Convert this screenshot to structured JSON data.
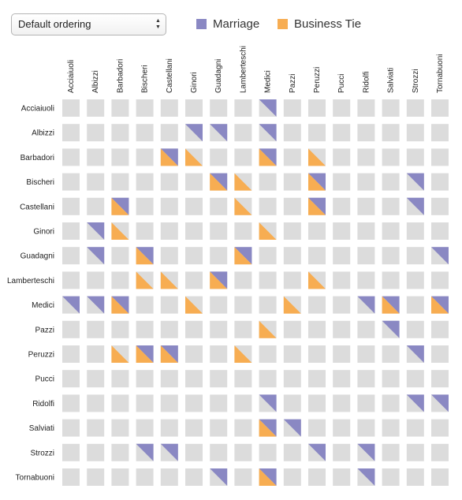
{
  "controls": {
    "ordering_select": {
      "value": "Default ordering"
    }
  },
  "legend": [
    {
      "name": "Marriage",
      "color": "#8a88c3"
    },
    {
      "name": "Business Tie",
      "color": "#f7ad52"
    }
  ],
  "colors": {
    "empty_cell": "#dcdcdc",
    "marriage": "#8a88c3",
    "business": "#f7ad52"
  },
  "chart_data": {
    "type": "heatmap",
    "title": "",
    "nodes": [
      "Acciaiuoli",
      "Albizzi",
      "Barbadori",
      "Bischeri",
      "Castellani",
      "Ginori",
      "Guadagni",
      "Lamberteschi",
      "Medici",
      "Pazzi",
      "Peruzzi",
      "Pucci",
      "Ridolfi",
      "Salviati",
      "Strozzi",
      "Tornabuoni"
    ],
    "relations": [
      "Marriage",
      "Business Tie"
    ],
    "cells": [
      {
        "row": "Acciaiuoli",
        "col": "Medici",
        "marriage": true,
        "business": false
      },
      {
        "row": "Albizzi",
        "col": "Ginori",
        "marriage": true,
        "business": false
      },
      {
        "row": "Albizzi",
        "col": "Guadagni",
        "marriage": true,
        "business": false
      },
      {
        "row": "Albizzi",
        "col": "Medici",
        "marriage": true,
        "business": false
      },
      {
        "row": "Barbadori",
        "col": "Castellani",
        "marriage": true,
        "business": true
      },
      {
        "row": "Barbadori",
        "col": "Ginori",
        "marriage": false,
        "business": true
      },
      {
        "row": "Barbadori",
        "col": "Medici",
        "marriage": true,
        "business": true
      },
      {
        "row": "Barbadori",
        "col": "Peruzzi",
        "marriage": false,
        "business": true
      },
      {
        "row": "Bischeri",
        "col": "Guadagni",
        "marriage": true,
        "business": true
      },
      {
        "row": "Bischeri",
        "col": "Lamberteschi",
        "marriage": false,
        "business": true
      },
      {
        "row": "Bischeri",
        "col": "Peruzzi",
        "marriage": true,
        "business": true
      },
      {
        "row": "Bischeri",
        "col": "Strozzi",
        "marriage": true,
        "business": false
      },
      {
        "row": "Castellani",
        "col": "Barbadori",
        "marriage": true,
        "business": true
      },
      {
        "row": "Castellani",
        "col": "Lamberteschi",
        "marriage": false,
        "business": true
      },
      {
        "row": "Castellani",
        "col": "Peruzzi",
        "marriage": true,
        "business": true
      },
      {
        "row": "Castellani",
        "col": "Strozzi",
        "marriage": true,
        "business": false
      },
      {
        "row": "Ginori",
        "col": "Albizzi",
        "marriage": true,
        "business": false
      },
      {
        "row": "Ginori",
        "col": "Barbadori",
        "marriage": false,
        "business": true
      },
      {
        "row": "Ginori",
        "col": "Medici",
        "marriage": false,
        "business": true
      },
      {
        "row": "Guadagni",
        "col": "Albizzi",
        "marriage": true,
        "business": false
      },
      {
        "row": "Guadagni",
        "col": "Bischeri",
        "marriage": true,
        "business": true
      },
      {
        "row": "Guadagni",
        "col": "Lamberteschi",
        "marriage": true,
        "business": true
      },
      {
        "row": "Guadagni",
        "col": "Tornabuoni",
        "marriage": true,
        "business": false
      },
      {
        "row": "Lamberteschi",
        "col": "Bischeri",
        "marriage": false,
        "business": true
      },
      {
        "row": "Lamberteschi",
        "col": "Castellani",
        "marriage": false,
        "business": true
      },
      {
        "row": "Lamberteschi",
        "col": "Guadagni",
        "marriage": true,
        "business": true
      },
      {
        "row": "Lamberteschi",
        "col": "Peruzzi",
        "marriage": false,
        "business": true
      },
      {
        "row": "Medici",
        "col": "Acciaiuoli",
        "marriage": true,
        "business": false
      },
      {
        "row": "Medici",
        "col": "Albizzi",
        "marriage": true,
        "business": false
      },
      {
        "row": "Medici",
        "col": "Barbadori",
        "marriage": true,
        "business": true
      },
      {
        "row": "Medici",
        "col": "Ginori",
        "marriage": false,
        "business": true
      },
      {
        "row": "Medici",
        "col": "Pazzi",
        "marriage": false,
        "business": true
      },
      {
        "row": "Medici",
        "col": "Ridolfi",
        "marriage": true,
        "business": false
      },
      {
        "row": "Medici",
        "col": "Salviati",
        "marriage": true,
        "business": true
      },
      {
        "row": "Medici",
        "col": "Tornabuoni",
        "marriage": true,
        "business": true
      },
      {
        "row": "Pazzi",
        "col": "Medici",
        "marriage": false,
        "business": true
      },
      {
        "row": "Pazzi",
        "col": "Salviati",
        "marriage": true,
        "business": false
      },
      {
        "row": "Peruzzi",
        "col": "Barbadori",
        "marriage": false,
        "business": true
      },
      {
        "row": "Peruzzi",
        "col": "Bischeri",
        "marriage": true,
        "business": true
      },
      {
        "row": "Peruzzi",
        "col": "Castellani",
        "marriage": true,
        "business": true
      },
      {
        "row": "Peruzzi",
        "col": "Lamberteschi",
        "marriage": false,
        "business": true
      },
      {
        "row": "Peruzzi",
        "col": "Strozzi",
        "marriage": true,
        "business": false
      },
      {
        "row": "Ridolfi",
        "col": "Medici",
        "marriage": true,
        "business": false
      },
      {
        "row": "Ridolfi",
        "col": "Strozzi",
        "marriage": true,
        "business": false
      },
      {
        "row": "Ridolfi",
        "col": "Tornabuoni",
        "marriage": true,
        "business": false
      },
      {
        "row": "Salviati",
        "col": "Medici",
        "marriage": true,
        "business": true
      },
      {
        "row": "Salviati",
        "col": "Pazzi",
        "marriage": true,
        "business": false
      },
      {
        "row": "Strozzi",
        "col": "Bischeri",
        "marriage": true,
        "business": false
      },
      {
        "row": "Strozzi",
        "col": "Castellani",
        "marriage": true,
        "business": false
      },
      {
        "row": "Strozzi",
        "col": "Peruzzi",
        "marriage": true,
        "business": false
      },
      {
        "row": "Strozzi",
        "col": "Ridolfi",
        "marriage": true,
        "business": false
      },
      {
        "row": "Tornabuoni",
        "col": "Guadagni",
        "marriage": true,
        "business": false
      },
      {
        "row": "Tornabuoni",
        "col": "Medici",
        "marriage": true,
        "business": true
      },
      {
        "row": "Tornabuoni",
        "col": "Ridolfi",
        "marriage": true,
        "business": false
      }
    ]
  }
}
